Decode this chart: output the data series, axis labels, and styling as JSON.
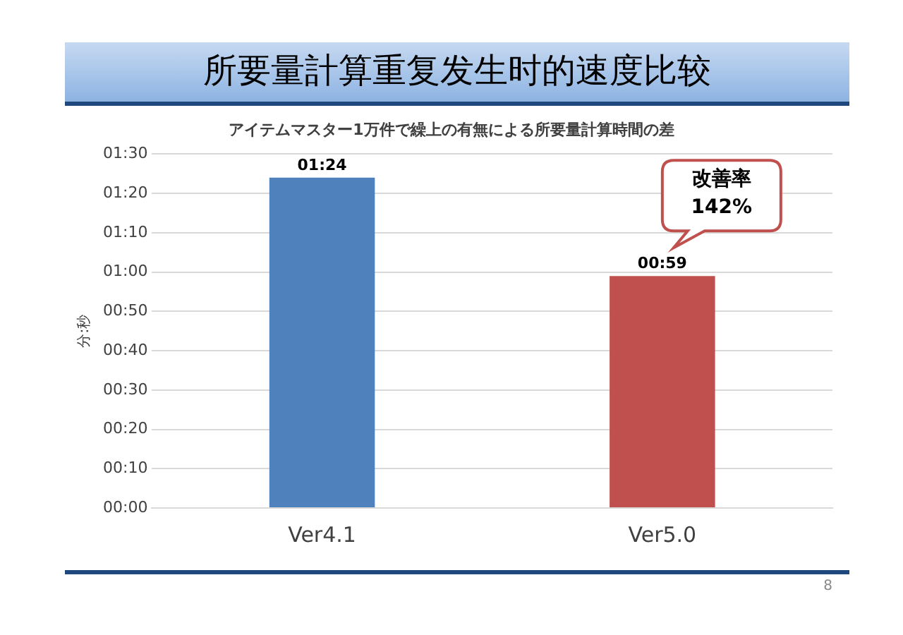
{
  "chart_data": {
    "type": "bar",
    "title": "所要量計算重复发生时的速度比较",
    "subtitle": "アイテムマスター1万件で繰上の有無による所要量計算時間の差",
    "ylabel": "分:秒",
    "categories": [
      "Ver4.1",
      "Ver5.0"
    ],
    "values": [
      84,
      59
    ],
    "colors": [
      "#4f81bd",
      "#c0504d"
    ],
    "value_labels": [
      "01:24",
      "00:59"
    ],
    "ylim": [
      0,
      90
    ],
    "yticks": [
      {
        "value": 0,
        "label": "00:00"
      },
      {
        "value": 10,
        "label": "00:10"
      },
      {
        "value": 20,
        "label": "00:20"
      },
      {
        "value": 30,
        "label": "00:30"
      },
      {
        "value": 40,
        "label": "00:40"
      },
      {
        "value": 50,
        "label": "00:50"
      },
      {
        "value": 60,
        "label": "01:00"
      },
      {
        "value": 70,
        "label": "01:10"
      },
      {
        "value": 80,
        "label": "01:20"
      },
      {
        "value": 90,
        "label": "01:30"
      }
    ],
    "grid": "y",
    "legend": false,
    "annotations": [
      "改善率\n142%",
      "8"
    ]
  }
}
